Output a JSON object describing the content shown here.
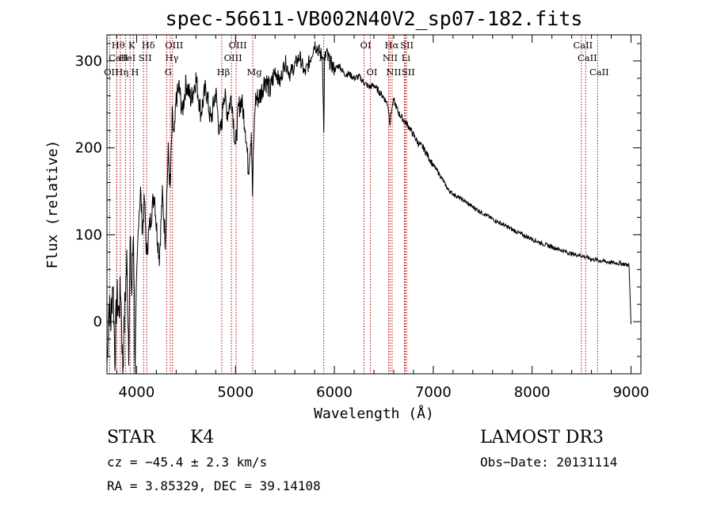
{
  "chart_data": {
    "type": "line",
    "title": "spec-56611-VB002N40V2_sp07-182.fits",
    "xlabel": "Wavelength (Å)",
    "ylabel": "Flux (relative)",
    "xlim": [
      3700,
      9100
    ],
    "ylim": [
      -60,
      330
    ],
    "xticks": [
      4000,
      5000,
      6000,
      7000,
      8000,
      9000
    ],
    "yticks": [
      0,
      100,
      200,
      300
    ],
    "series": [
      {
        "name": "flux",
        "x": [
          3700,
          3720,
          3740,
          3760,
          3780,
          3800,
          3820,
          3840,
          3860,
          3880,
          3900,
          3920,
          3935,
          3950,
          3968,
          3985,
          4000,
          4020,
          4040,
          4060,
          4080,
          4101,
          4120,
          4150,
          4180,
          4200,
          4230,
          4260,
          4290,
          4320,
          4340,
          4360,
          4380,
          4400,
          4430,
          4460,
          4500,
          4550,
          4600,
          4650,
          4700,
          4750,
          4800,
          4840,
          4861,
          4880,
          4920,
          4960,
          5000,
          5030,
          5060,
          5100,
          5130,
          5160,
          5172,
          5183,
          5200,
          5250,
          5300,
          5350,
          5400,
          5450,
          5500,
          5550,
          5600,
          5650,
          5700,
          5750,
          5800,
          5850,
          5880,
          5893,
          5900,
          5920,
          5950,
          6000,
          6050,
          6100,
          6150,
          6200,
          6250,
          6300,
          6350,
          6400,
          6450,
          6500,
          6540,
          6563,
          6580,
          6600,
          6650,
          6700,
          6750,
          6800,
          6850,
          6900,
          6950,
          7000,
          7050,
          7100,
          7150,
          7200,
          7300,
          7400,
          7500,
          7600,
          7700,
          7800,
          7900,
          8000,
          8100,
          8200,
          8300,
          8400,
          8500,
          8600,
          8700,
          8800,
          8900,
          8980,
          9000
        ],
        "values": [
          -50,
          20,
          0,
          50,
          -40,
          30,
          10,
          40,
          -60,
          15,
          70,
          -30,
          90,
          30,
          110,
          -60,
          40,
          120,
          150,
          105,
          140,
          75,
          100,
          125,
          150,
          110,
          75,
          145,
          95,
          195,
          150,
          235,
          210,
          255,
          270,
          240,
          275,
          255,
          280,
          240,
          270,
          230,
          265,
          215,
          225,
          265,
          240,
          260,
          200,
          245,
          255,
          225,
          175,
          220,
          145,
          200,
          255,
          260,
          280,
          265,
          290,
          275,
          300,
          285,
          295,
          305,
          285,
          300,
          320,
          310,
          305,
          215,
          300,
          310,
          300,
          290,
          295,
          285,
          285,
          280,
          282,
          275,
          270,
          272,
          265,
          258,
          250,
          228,
          245,
          255,
          240,
          232,
          225,
          215,
          205,
          200,
          190,
          180,
          172,
          162,
          152,
          147,
          140,
          132,
          125,
          118,
          112,
          106,
          100,
          95,
          90,
          86,
          82,
          78,
          76,
          72,
          70,
          68,
          67,
          65,
          -3
        ]
      }
    ],
    "spectral_lines": [
      {
        "name": "Hθ",
        "wavelength": 3798,
        "row": 1
      },
      {
        "name": "CaII",
        "wavelength": 3800,
        "row": 2
      },
      {
        "name": "OII",
        "wavelength": 3727,
        "row": 3
      },
      {
        "name": "Hη",
        "wavelength": 3835,
        "row": 3
      },
      {
        "name": "HeI",
        "wavelength": 3889,
        "row": 2
      },
      {
        "name": "K",
        "wavelength": 3934,
        "row": 1
      },
      {
        "name": "H",
        "wavelength": 3968,
        "row": 3
      },
      {
        "name": "SII",
        "wavelength": 4070,
        "row": 2
      },
      {
        "name": "Hδ",
        "wavelength": 4102,
        "row": 1
      },
      {
        "name": "OIII",
        "wavelength": 4363,
        "row": 1
      },
      {
        "name": "Hγ",
        "wavelength": 4340,
        "row": 2
      },
      {
        "name": "G",
        "wavelength": 4304,
        "row": 3
      },
      {
        "name": "OIII",
        "wavelength": 5007,
        "row": 1
      },
      {
        "name": "OIII",
        "wavelength": 4959,
        "row": 2
      },
      {
        "name": "Hβ",
        "wavelength": 4861,
        "row": 3
      },
      {
        "name": "Mg",
        "wavelength": 5175,
        "row": 3
      },
      {
        "name": "Na",
        "wavelength": 5893,
        "row": 2
      },
      {
        "name": "OI",
        "wavelength": 6300,
        "row": 1
      },
      {
        "name": "OI",
        "wavelength": 6364,
        "row": 3
      },
      {
        "name": "Hα",
        "wavelength": 6563,
        "row": 1
      },
      {
        "name": "NII",
        "wavelength": 6548,
        "row": 2
      },
      {
        "name": "NII",
        "wavelength": 6584,
        "row": 3
      },
      {
        "name": "SII",
        "wavelength": 6717,
        "row": 1
      },
      {
        "name": "Li",
        "wavelength": 6708,
        "row": 2
      },
      {
        "name": "SII",
        "wavelength": 6731,
        "row": 3
      },
      {
        "name": "CaII",
        "wavelength": 8498,
        "row": 1
      },
      {
        "name": "CaII",
        "wavelength": 8542,
        "row": 2
      },
      {
        "name": "CaII",
        "wavelength": 8662,
        "row": 3
      }
    ]
  },
  "info": {
    "class": "STAR",
    "subclass": "K4",
    "survey": "LAMOST DR3",
    "cz": "cz = −45.4 ± 2.3 km/s",
    "obs_date": "Obs−Date: 20131114",
    "radec": "RA =   3.85329, DEC =  39.14108"
  }
}
